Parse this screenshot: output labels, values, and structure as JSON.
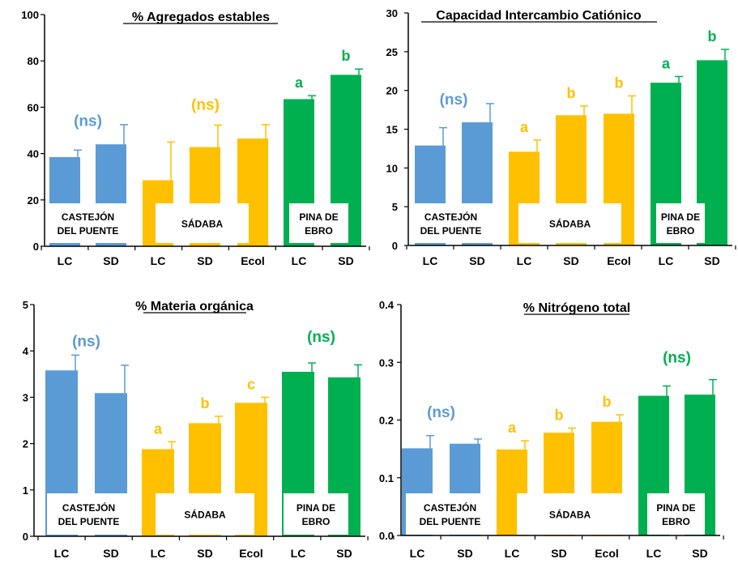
{
  "colors": {
    "castejon": "#5B9BD5",
    "sadaba": "#FFC000",
    "pina": "#00B050",
    "axis": "#000000"
  },
  "categories": [
    "LC",
    "SD",
    "LC",
    "SD",
    "Ecol",
    "LC",
    "SD"
  ],
  "site_labels": [
    {
      "site": "castejon",
      "lines": [
        "CASTEJÓN",
        "DEL PUENTE"
      ]
    },
    {
      "site": "sadaba",
      "lines": [
        "SÁDABA"
      ]
    },
    {
      "site": "pina",
      "lines": [
        "PINA DE",
        "EBRO"
      ]
    }
  ],
  "chart_data": [
    {
      "type": "bar",
      "title": "% Agregados estables",
      "ylim": [
        0,
        100
      ],
      "yticks": [
        "0",
        "20",
        "40",
        "60",
        "80",
        "100"
      ],
      "values": [
        38.5,
        44,
        28.5,
        42.8,
        46.5,
        63.5,
        74
      ],
      "errors": [
        3,
        8.5,
        16.5,
        9.5,
        6,
        1.5,
        2.5
      ],
      "sites": [
        "castejon",
        "castejon",
        "sadaba",
        "sadaba",
        "sadaba",
        "pina",
        "pina"
      ],
      "group_annotations": [
        {
          "text": "(ns)",
          "site": "castejon",
          "y": 52
        },
        {
          "text": "(ns)",
          "site": "sadaba",
          "y": 59
        }
      ],
      "bar_annotations": [
        null,
        null,
        null,
        null,
        null,
        "a",
        "b"
      ]
    },
    {
      "type": "bar",
      "title": "Capacidad Intercambio Catiónico",
      "ylim": [
        0,
        30
      ],
      "yticks": [
        "0",
        "5",
        "10",
        "15",
        "20",
        "25",
        "30"
      ],
      "values": [
        12.9,
        15.9,
        12.1,
        16.8,
        17.0,
        21.0,
        23.9
      ],
      "errors": [
        2.3,
        2.4,
        1.5,
        1.2,
        2.3,
        0.8,
        1.4
      ],
      "sites": [
        "castejon",
        "castejon",
        "sadaba",
        "sadaba",
        "sadaba",
        "pina",
        "pina"
      ],
      "group_annotations": [
        {
          "text": "(ns)",
          "site": "castejon",
          "y": 18.2
        }
      ],
      "bar_annotations": [
        null,
        null,
        "a",
        "b",
        "b",
        "a",
        "b"
      ]
    },
    {
      "type": "bar",
      "title": "% Materia orgánica",
      "ylim": [
        0,
        5
      ],
      "yticks": [
        "0",
        "1",
        "2",
        "3",
        "4",
        "5"
      ],
      "values": [
        3.58,
        3.09,
        1.88,
        2.44,
        2.88,
        3.55,
        3.43
      ],
      "errors": [
        0.33,
        0.6,
        0.16,
        0.15,
        0.12,
        0.19,
        0.27
      ],
      "sites": [
        "castejon",
        "castejon",
        "sadaba",
        "sadaba",
        "sadaba",
        "pina",
        "pina"
      ],
      "group_annotations": [
        {
          "text": "(ns)",
          "site": "castejon",
          "y": 4.1
        },
        {
          "text": "(ns)",
          "site": "pina",
          "y": 4.2
        }
      ],
      "bar_annotations": [
        null,
        null,
        "a",
        "b",
        "c",
        null,
        null
      ]
    },
    {
      "type": "bar",
      "title": "% Nitrógeno total",
      "ylim": [
        0,
        0.4
      ],
      "yticks": [
        "0.0",
        "0.1",
        "0.2",
        "0.3",
        "0.4"
      ],
      "values": [
        0.151,
        0.159,
        0.149,
        0.178,
        0.197,
        0.242,
        0.244
      ],
      "errors": [
        0.022,
        0.008,
        0.015,
        0.008,
        0.012,
        0.017,
        0.026
      ],
      "sites": [
        "castejon",
        "castejon",
        "sadaba",
        "sadaba",
        "sadaba",
        "pina",
        "pina"
      ],
      "group_annotations": [
        {
          "text": "(ns)",
          "site": "castejon",
          "y": 0.205
        },
        {
          "text": "(ns)",
          "site": "pina",
          "y": 0.3
        }
      ],
      "bar_annotations": [
        null,
        null,
        "a",
        "b",
        "b",
        null,
        null
      ]
    }
  ]
}
